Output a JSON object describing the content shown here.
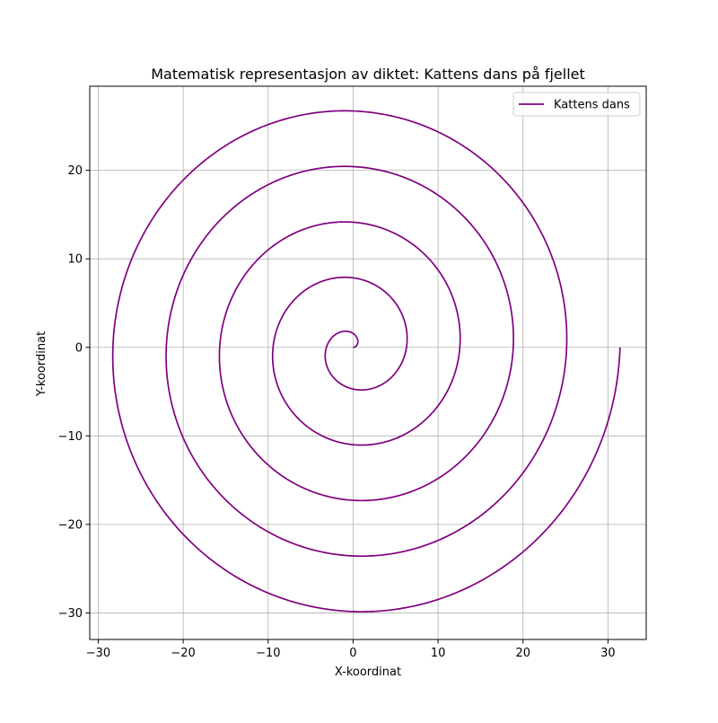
{
  "chart_data": {
    "type": "line",
    "title": "Matematisk representasjon av diktet: Kattens dans på fjellet",
    "xlabel": "X-koordinat",
    "ylabel": "Y-koordinat",
    "xlim": [
      -31.0,
      34.5
    ],
    "ylim": [
      -33.0,
      29.5
    ],
    "xticks": [
      -30,
      -20,
      -10,
      0,
      10,
      20,
      30
    ],
    "yticks": [
      -30,
      -20,
      -10,
      0,
      10,
      20
    ],
    "xtick_labels": [
      "−30",
      "−20",
      "−10",
      "0",
      "10",
      "20",
      "30"
    ],
    "ytick_labels": [
      "−30",
      "−20",
      "−10",
      "0",
      "10",
      "20"
    ],
    "grid": true,
    "legend_position": "top-right",
    "series": [
      {
        "name": "Kattens dans",
        "color": "#800080",
        "curve": "archimedean-spiral",
        "r_per_radian": 1.0,
        "theta_range_turns": [
          0,
          5
        ],
        "points": [
          [
            0.0,
            0.0
          ],
          [
            0.5,
            0.86
          ],
          [
            -0.5,
            1.73
          ],
          [
            -2.0,
            1.0
          ],
          [
            -3.14,
            0.0
          ],
          [
            -2.5,
            -4.33
          ],
          [
            1.0,
            -4.7
          ],
          [
            6.28,
            0.0
          ],
          [
            -1.0,
            7.8
          ],
          [
            -9.42,
            0.0
          ],
          [
            1.0,
            -11.0
          ],
          [
            12.57,
            0.0
          ],
          [
            -1.0,
            14.1
          ],
          [
            -15.71,
            0.0
          ],
          [
            1.0,
            -17.3
          ],
          [
            18.85,
            0.0
          ],
          [
            -1.0,
            20.4
          ],
          [
            -21.99,
            0.0
          ],
          [
            1.0,
            -23.6
          ],
          [
            25.13,
            0.0
          ],
          [
            -1.0,
            26.7
          ],
          [
            -28.27,
            0.0
          ],
          [
            1.0,
            -29.9
          ],
          [
            31.42,
            0.0
          ]
        ]
      }
    ]
  }
}
